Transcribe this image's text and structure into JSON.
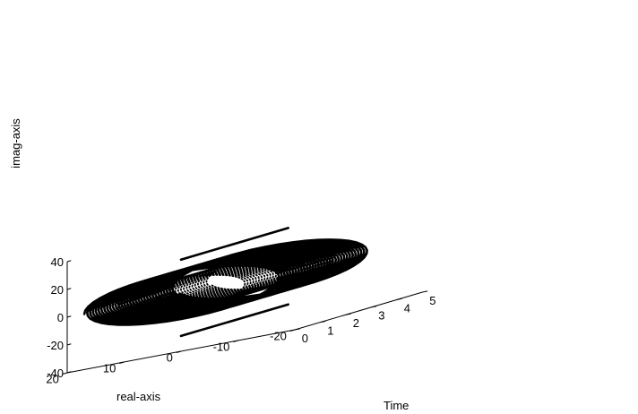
{
  "chart_data": {
    "type": "line",
    "title": "",
    "xlabel": "Time",
    "ylabel": "real-axis",
    "zlabel": "imag-axis",
    "xlim": [
      0,
      5
    ],
    "ylim": [
      -20,
      20
    ],
    "zlim": [
      -40,
      40
    ],
    "xticks": [
      "0",
      "1",
      "2",
      "3",
      "4",
      "5"
    ],
    "yticks": [
      "-20",
      "-10",
      "0",
      "10",
      "20"
    ],
    "zticks": [
      "-40",
      "-20",
      "0",
      "20",
      "40"
    ],
    "grid": false,
    "line_color": "#000000",
    "series": [
      {
        "kind": "helix",
        "style": "solid",
        "real_amplitude": 17,
        "imag_amplitude": 17,
        "frequency_cycles_per_time": 9,
        "t_range": [
          0,
          3.55
        ]
      },
      {
        "kind": "helix",
        "style": "dotted",
        "real_amplitude": 11,
        "imag_amplitude": 12,
        "frequency_cycles_per_time": 9,
        "t_range": [
          0,
          3.55
        ]
      },
      {
        "kind": "line",
        "style": "solid",
        "real": 0,
        "imag": 26,
        "t_range": [
          0,
          4.2
        ]
      },
      {
        "kind": "line",
        "style": "solid",
        "real": 0,
        "imag": -29,
        "t_range": [
          0,
          4.2
        ]
      }
    ]
  }
}
